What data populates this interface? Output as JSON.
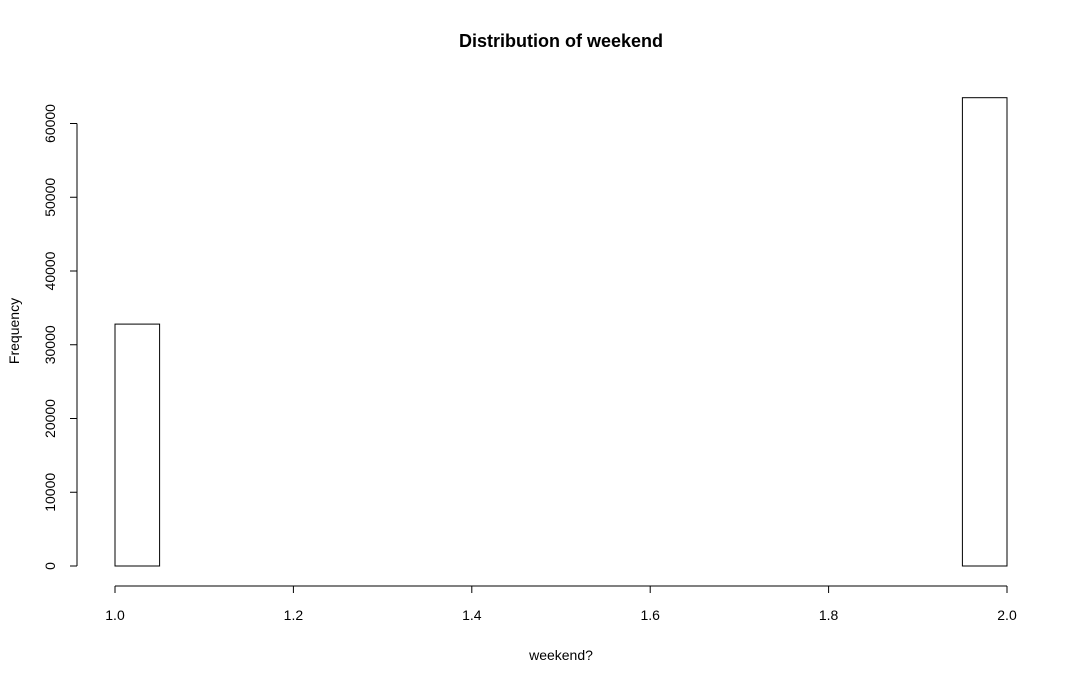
{
  "chart_data": {
    "type": "bar",
    "title": "Distribution of weekend",
    "xlabel": "weekend?",
    "ylabel": "Frequency",
    "xlim": [
      1.0,
      2.0
    ],
    "ylim": [
      0,
      60000
    ],
    "x_ticks": [
      1.0,
      1.2,
      1.4,
      1.6,
      1.8,
      2.0
    ],
    "x_tick_labels": [
      "1.0",
      "1.2",
      "1.4",
      "1.6",
      "1.8",
      "2.0"
    ],
    "y_ticks": [
      0,
      10000,
      20000,
      30000,
      40000,
      50000,
      60000
    ],
    "y_tick_labels": [
      "0",
      "10000",
      "20000",
      "30000",
      "40000",
      "50000",
      "60000"
    ],
    "bin_width": 0.05,
    "bins": [
      {
        "start": 1.0,
        "end": 1.05,
        "count": 32800
      },
      {
        "start": 1.05,
        "end": 1.1,
        "count": 0
      },
      {
        "start": 1.1,
        "end": 1.15,
        "count": 0
      },
      {
        "start": 1.15,
        "end": 1.2,
        "count": 0
      },
      {
        "start": 1.2,
        "end": 1.25,
        "count": 0
      },
      {
        "start": 1.25,
        "end": 1.3,
        "count": 0
      },
      {
        "start": 1.3,
        "end": 1.35,
        "count": 0
      },
      {
        "start": 1.35,
        "end": 1.4,
        "count": 0
      },
      {
        "start": 1.4,
        "end": 1.45,
        "count": 0
      },
      {
        "start": 1.45,
        "end": 1.5,
        "count": 0
      },
      {
        "start": 1.5,
        "end": 1.55,
        "count": 0
      },
      {
        "start": 1.55,
        "end": 1.6,
        "count": 0
      },
      {
        "start": 1.6,
        "end": 1.65,
        "count": 0
      },
      {
        "start": 1.65,
        "end": 1.7,
        "count": 0
      },
      {
        "start": 1.7,
        "end": 1.75,
        "count": 0
      },
      {
        "start": 1.75,
        "end": 1.8,
        "count": 0
      },
      {
        "start": 1.8,
        "end": 1.85,
        "count": 0
      },
      {
        "start": 1.85,
        "end": 1.9,
        "count": 0
      },
      {
        "start": 1.9,
        "end": 1.95,
        "count": 0
      },
      {
        "start": 1.95,
        "end": 2.0,
        "count": 63500
      }
    ],
    "grid": false,
    "legend": "none"
  }
}
